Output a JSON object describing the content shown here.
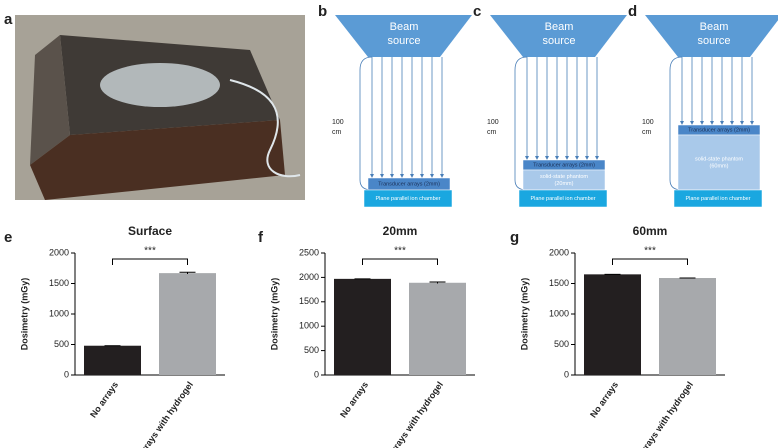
{
  "panels": [
    "a",
    "b",
    "c",
    "d",
    "e",
    "f",
    "g"
  ],
  "diagrams": [
    {
      "source": [
        "Beam",
        "source"
      ],
      "distance": [
        "100",
        "cm"
      ],
      "layers": [
        [
          "Transducer arrays (2mm)"
        ],
        [
          "Plane parallel ion chamber"
        ]
      ]
    },
    {
      "source": [
        "Beam",
        "source"
      ],
      "distance": [
        "100",
        "cm"
      ],
      "layers": [
        [
          "Transducer arrays (2mm)"
        ],
        [
          "solid-state phantom",
          "(20mm)"
        ],
        [
          "Plane parallel ion chamber"
        ]
      ]
    },
    {
      "source": [
        "Beam",
        "source"
      ],
      "distance": [
        "100",
        "cm"
      ],
      "layers": [
        [
          "Transducer arrays (2mm)"
        ],
        [
          "solid-state phantom",
          "(60mm)"
        ],
        [
          "Plane parallel ion chamber"
        ]
      ]
    }
  ],
  "chart_data": [
    {
      "type": "bar",
      "title": "Surface",
      "y_label": "Dosimetry (mGy)",
      "categories": [
        "No arrays",
        "Arrays with hydrogel"
      ],
      "values": [
        480,
        1670
      ],
      "errors": [
        0,
        15
      ],
      "colors": [
        "#231f20",
        "#a7a9ac"
      ],
      "ylim": [
        0,
        2000
      ],
      "yticks": [
        0,
        500,
        1000,
        1500,
        2000
      ],
      "annotation": "***"
    },
    {
      "type": "bar",
      "title": "20mm",
      "y_label": "Dosimetry (mGy)",
      "categories": [
        "No arrays",
        "Arrays with hydrogel"
      ],
      "values": [
        1970,
        1890
      ],
      "errors": [
        0,
        15
      ],
      "colors": [
        "#231f20",
        "#a7a9ac"
      ],
      "ylim": [
        0,
        2500
      ],
      "yticks": [
        0,
        500,
        1000,
        1500,
        2000,
        2500
      ],
      "annotation": "***"
    },
    {
      "type": "bar",
      "title": "60mm",
      "y_label": "Dosimetry (mGy)",
      "categories": [
        "No arrays",
        "Arrays with hydrogel"
      ],
      "values": [
        1650,
        1590
      ],
      "errors": [
        0,
        0
      ],
      "colors": [
        "#231f20",
        "#a7a9ac"
      ],
      "ylim": [
        0,
        2000
      ],
      "yticks": [
        0,
        500,
        1000,
        1500,
        2000
      ],
      "annotation": "***"
    }
  ]
}
